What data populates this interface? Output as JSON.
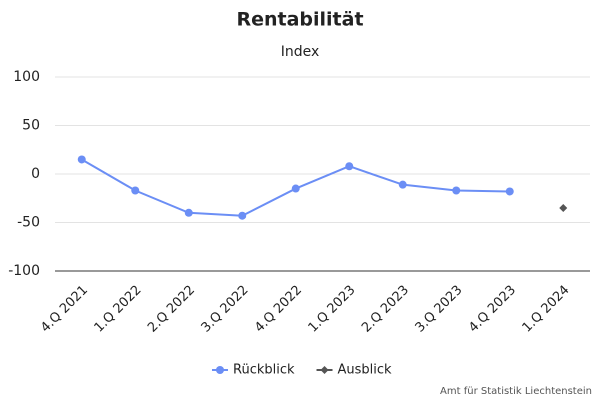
{
  "chart_data": {
    "type": "line",
    "title": "Rentabilität",
    "subtitle": "Index",
    "categories": [
      "4.Q 2021",
      "1.Q 2022",
      "2.Q 2022",
      "3.Q 2022",
      "4.Q 2022",
      "1.Q 2023",
      "2.Q 2023",
      "3.Q 2023",
      "4.Q 2023",
      "1.Q 2024"
    ],
    "series": [
      {
        "name": "Rückblick",
        "color": "#6b8ef5",
        "marker": "circle",
        "values": [
          15,
          -17,
          -40,
          -43,
          -15,
          8,
          -11,
          -17,
          -18,
          null
        ]
      },
      {
        "name": "Ausblick",
        "color": "#555555",
        "marker": "diamond",
        "values": [
          null,
          null,
          null,
          null,
          null,
          null,
          null,
          null,
          null,
          -35
        ]
      }
    ],
    "ylim": [
      -100,
      100
    ],
    "yticks": [
      -100,
      -50,
      0,
      50,
      100
    ],
    "grid": true,
    "credit": "Amt für Statistik Liechtenstein"
  }
}
